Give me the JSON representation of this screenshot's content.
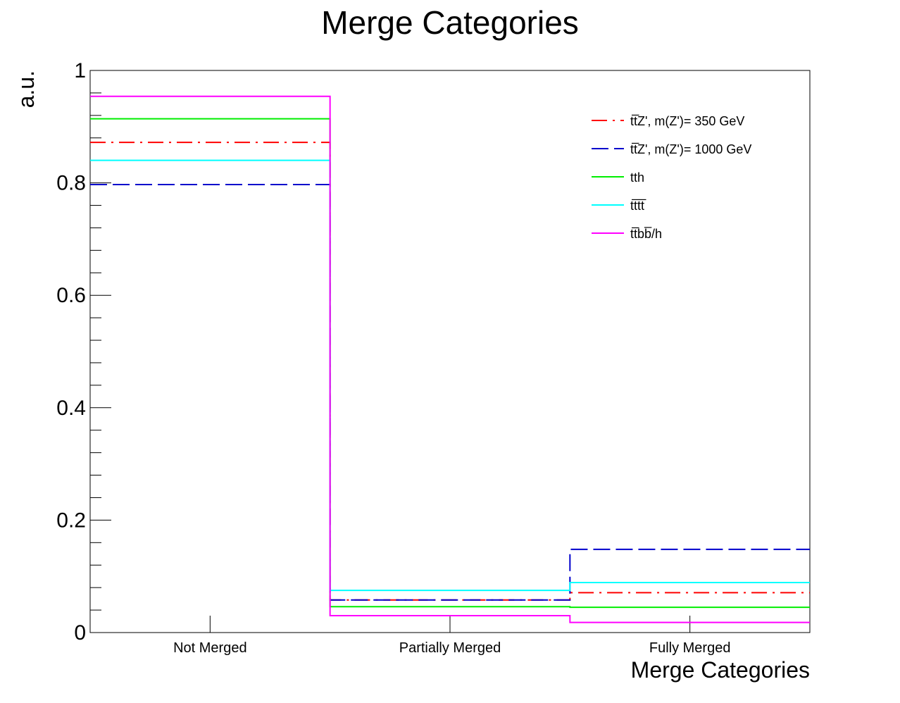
{
  "chart_data": {
    "type": "line",
    "title": "Merge Categories",
    "xlabel": "Merge Categories",
    "ylabel": "a.u.",
    "categories": [
      "Not Merged",
      "Partially Merged",
      "Fully Merged"
    ],
    "ylim": [
      0,
      1
    ],
    "yticks": [
      "0",
      "0.2",
      "0.4",
      "0.6",
      "0.8",
      "1"
    ],
    "grid": false,
    "legend_position": "top-right",
    "series": [
      {
        "name": "tt̅Z', m(Z')= 350 GeV",
        "color": "#ff0000",
        "style": "dash-dot",
        "values": [
          0.872,
          0.058,
          0.071
        ]
      },
      {
        "name": "tt̅Z', m(Z')= 1000 GeV",
        "color": "#0000cc",
        "style": "dashed",
        "values": [
          0.797,
          0.058,
          0.148
        ]
      },
      {
        "name": "tth",
        "color": "#00ee00",
        "style": "solid",
        "values": [
          0.914,
          0.046,
          0.045
        ]
      },
      {
        "name": "tt̅tt̅",
        "color": "#00ffff",
        "style": "solid",
        "values": [
          0.84,
          0.075,
          0.089
        ]
      },
      {
        "name": "tt̅bb̅/h",
        "color": "#ff00ff",
        "style": "solid",
        "values": [
          0.954,
          0.03,
          0.018
        ]
      }
    ]
  }
}
